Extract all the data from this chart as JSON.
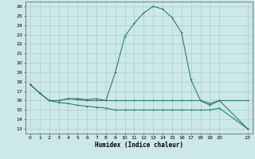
{
  "xlabel": "Humidex (Indice chaleur)",
  "xlim": [
    -0.5,
    23.5
  ],
  "ylim": [
    12.5,
    26.5
  ],
  "xticks": [
    0,
    1,
    2,
    3,
    4,
    5,
    6,
    7,
    8,
    9,
    10,
    11,
    12,
    13,
    14,
    15,
    16,
    17,
    18,
    19,
    20,
    23
  ],
  "yticks": [
    13,
    14,
    15,
    16,
    17,
    18,
    19,
    20,
    21,
    22,
    23,
    24,
    25,
    26
  ],
  "bg_color": "#cce8e8",
  "grid_color": "#aacfcf",
  "line_color": "#2d7d74",
  "line1_x": [
    0,
    1,
    2,
    3,
    4,
    5,
    6,
    7,
    8,
    9,
    10,
    11,
    12,
    13,
    14,
    15,
    16,
    17,
    18,
    19,
    20,
    23
  ],
  "line1_y": [
    17.7,
    16.8,
    16.0,
    16.0,
    16.2,
    16.2,
    16.1,
    16.2,
    16.0,
    19.0,
    22.8,
    24.2,
    25.3,
    26.0,
    25.7,
    24.8,
    23.2,
    18.2,
    16.0,
    15.5,
    16.0,
    13.0
  ],
  "line2_x": [
    0,
    1,
    2,
    3,
    4,
    5,
    6,
    7,
    8,
    9,
    10,
    11,
    12,
    13,
    14,
    15,
    16,
    17,
    18,
    19,
    20,
    23
  ],
  "line2_y": [
    17.7,
    16.8,
    16.0,
    16.0,
    16.2,
    16.1,
    16.0,
    16.0,
    16.0,
    16.0,
    16.0,
    16.0,
    16.0,
    16.0,
    16.0,
    16.0,
    16.0,
    16.0,
    16.0,
    15.7,
    16.0,
    16.0
  ],
  "line3_x": [
    0,
    1,
    2,
    3,
    4,
    5,
    6,
    7,
    8,
    9,
    10,
    11,
    12,
    13,
    14,
    15,
    16,
    17,
    18,
    19,
    20,
    23
  ],
  "line3_y": [
    17.7,
    16.8,
    16.0,
    15.8,
    15.7,
    15.5,
    15.4,
    15.3,
    15.2,
    15.0,
    15.0,
    15.0,
    15.0,
    15.0,
    15.0,
    15.0,
    15.0,
    15.0,
    15.0,
    15.0,
    15.2,
    13.0
  ]
}
